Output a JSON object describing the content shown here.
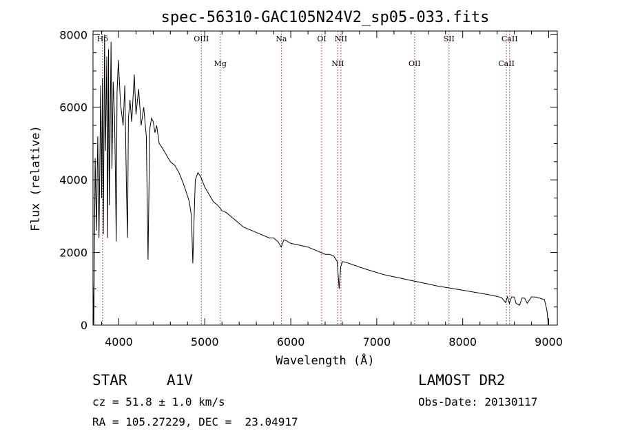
{
  "chart_data": {
    "type": "line",
    "title": "spec-56310-GAC105N24V2_sp05-033.fits",
    "xlabel": "Wavelength (Å)",
    "ylabel": "Flux (relative)",
    "xlim": [
      3700,
      9100
    ],
    "ylim": [
      0,
      8100
    ],
    "x_ticks": [
      4000,
      5000,
      6000,
      7000,
      8000,
      9000
    ],
    "y_ticks": [
      0,
      2000,
      4000,
      6000,
      8000
    ],
    "grid": false,
    "series": [
      {
        "x": [
          3700,
          3710,
          3720,
          3725,
          3740,
          3755,
          3770,
          3790,
          3800,
          3810,
          3820,
          3835,
          3845,
          3860,
          3870,
          3880,
          3890,
          3910,
          3920,
          3935,
          3950,
          3960,
          3970,
          3980,
          3995,
          4020,
          4050,
          4070,
          4090,
          4101,
          4112,
          4130,
          4150,
          4180,
          4200,
          4230,
          4260,
          4290,
          4320,
          4340,
          4360,
          4380,
          4400,
          4420,
          4440,
          4470,
          4500,
          4550,
          4600,
          4650,
          4700,
          4750,
          4780,
          4820,
          4845,
          4861,
          4875,
          4890,
          4920,
          4950,
          5000,
          5050,
          5100,
          5150,
          5200,
          5250,
          5300,
          5350,
          5400,
          5450,
          5500,
          5550,
          5600,
          5650,
          5700,
          5750,
          5800,
          5850,
          5889,
          5920,
          5950,
          6000,
          6100,
          6200,
          6300,
          6400,
          6450,
          6500,
          6540,
          6563,
          6580,
          6600,
          6650,
          6700,
          6800,
          6900,
          7000,
          7100,
          7200,
          7300,
          7400,
          7500,
          7600,
          7700,
          7800,
          7900,
          8000,
          8100,
          8200,
          8300,
          8400,
          8450,
          8498,
          8520,
          8542,
          8570,
          8600,
          8620,
          8662,
          8690,
          8720,
          8750,
          8800,
          8850,
          8900,
          8950,
          8980,
          8995,
          9000
        ],
        "y": [
          1200,
          0,
          3200,
          4600,
          2600,
          5200,
          2400,
          6600,
          3500,
          6800,
          2500,
          8000,
          4800,
          7400,
          2400,
          7600,
          3300,
          7800,
          4300,
          6700,
          5800,
          4200,
          2300,
          6400,
          7300,
          6100,
          5500,
          6600,
          3600,
          2400,
          5700,
          6200,
          5600,
          6900,
          5800,
          6500,
          5500,
          6000,
          5200,
          1800,
          5400,
          5700,
          5600,
          5300,
          5500,
          5000,
          4900,
          4700,
          4500,
          4400,
          4200,
          3900,
          3700,
          3400,
          3000,
          1700,
          2900,
          4000,
          4200,
          4100,
          3800,
          3600,
          3400,
          3300,
          3150,
          3100,
          3000,
          2900,
          2800,
          2700,
          2650,
          2600,
          2550,
          2500,
          2450,
          2400,
          2400,
          2300,
          2150,
          2350,
          2320,
          2250,
          2200,
          2150,
          2050,
          1950,
          1950,
          1900,
          1750,
          1000,
          1600,
          1750,
          1720,
          1680,
          1600,
          1520,
          1450,
          1380,
          1330,
          1280,
          1230,
          1180,
          1130,
          1080,
          1040,
          1000,
          960,
          920,
          880,
          840,
          790,
          760,
          620,
          780,
          600,
          780,
          770,
          600,
          550,
          750,
          740,
          600,
          780,
          770,
          740,
          700,
          400,
          0,
          0
        ]
      }
    ],
    "lines": [
      {
        "label": "Hδ",
        "x": 3810,
        "row": 1
      },
      {
        "label": "OIII",
        "x": 4960,
        "row": 1
      },
      {
        "label": "Mg",
        "x": 5180,
        "row": 2
      },
      {
        "label": "Na",
        "x": 5890,
        "row": 1
      },
      {
        "label": "OI",
        "x": 6360,
        "row": 1
      },
      {
        "label": "NII",
        "x": 6548,
        "row": 2
      },
      {
        "label": "NII",
        "x": 6584,
        "row": 1
      },
      {
        "label": "OII",
        "x": 7440,
        "row": 2
      },
      {
        "label": "SII",
        "x": 7840,
        "row": 1
      },
      {
        "label": "CaII",
        "x": 8508,
        "row": 2
      },
      {
        "label": "CaII",
        "x": 8545,
        "row": 1
      }
    ]
  },
  "info": {
    "class": "STAR",
    "subclass": "A1V",
    "survey": "LAMOST DR2",
    "cz": "cz = 51.8 ± 1.0 km/s",
    "obs_date": "Obs-Date: 20130117",
    "coords": "RA = 105.27229, DEC =  23.04917"
  }
}
